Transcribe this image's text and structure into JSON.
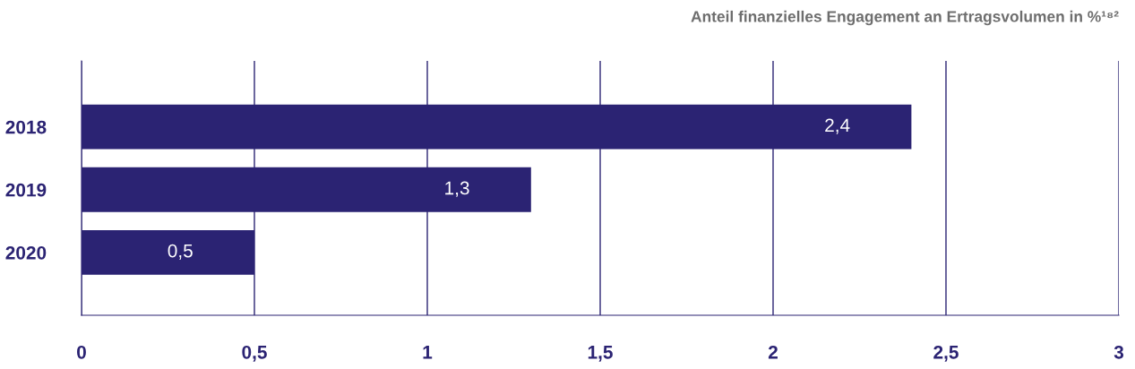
{
  "chart_data": {
    "type": "bar",
    "orientation": "horizontal",
    "title": "Anteil finanzielles Engagement an Ertragsvolumen in %¹⁸²",
    "categories": [
      "2018",
      "2019",
      "2020"
    ],
    "values": [
      2.4,
      1.3,
      0.5
    ],
    "color": "#2b2373",
    "value_labels": [
      "2,4",
      "1,3",
      "0,5"
    ],
    "xlim": [
      0,
      3
    ],
    "xticks": [
      0,
      {
        "value": 0.5,
        "label": "0,5"
      },
      1,
      {
        "value": 1.5,
        "label": "1,5"
      },
      2,
      {
        "value": 2.5,
        "label": "2,5"
      },
      3
    ],
    "grid": "x",
    "legend": false
  }
}
